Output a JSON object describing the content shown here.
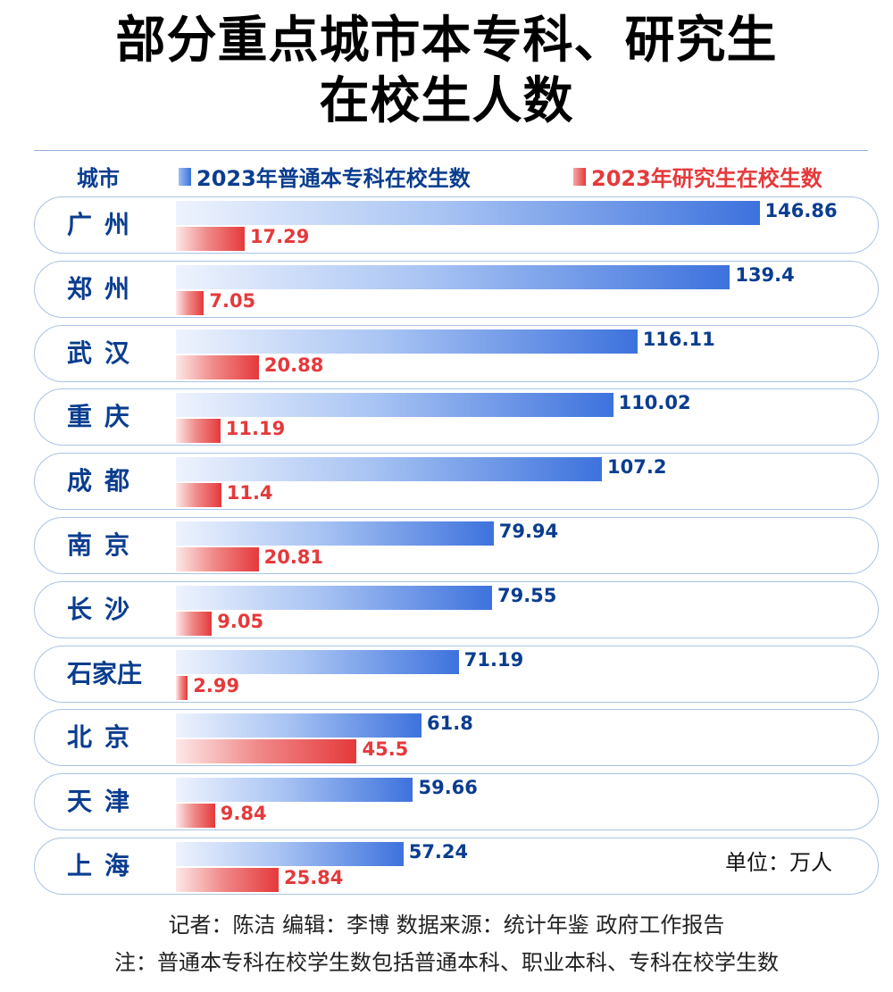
{
  "title_line1": "部分重点城市本专科、研究生",
  "title_line2": "在校生人数",
  "unit": "单位：万人",
  "credits": "记者：陈洁  编辑：李博  数据来源：统计年鉴 政府工作报告",
  "note": "注：普通本专科在校学生数包括普通本科、职业本科、专科在校学生数",
  "colors": {
    "undergrad": "#3d72dd",
    "postgrad": "#e5393b",
    "label": "#0a3d8f",
    "row_border": "#a9c3e6"
  },
  "chart_data": {
    "type": "bar",
    "orientation": "horizontal",
    "category_label": "城市",
    "categories": [
      "广州",
      "郑州",
      "武汉",
      "重庆",
      "成都",
      "南京",
      "长沙",
      "石家庄",
      "北京",
      "天津",
      "上海"
    ],
    "series": [
      {
        "name": "2023年普通本专科在校生数",
        "values": [
          146.86,
          139.4,
          116.11,
          110.02,
          107.2,
          79.94,
          79.55,
          71.19,
          61.8,
          59.66,
          57.24
        ],
        "labels": [
          "146.86",
          "139.4",
          "116.11",
          "110.02",
          "107.2",
          "79.94",
          "79.55",
          "71.19",
          "61.8",
          "59.66",
          "57.24"
        ]
      },
      {
        "name": "2023年研究生在校生数",
        "values": [
          17.29,
          7.05,
          20.88,
          11.19,
          11.4,
          20.81,
          9.05,
          2.99,
          45.5,
          9.84,
          25.84
        ],
        "labels": [
          "17.29",
          "7.05",
          "20.88",
          "11.19",
          "11.4",
          "20.81",
          "9.05",
          "2.99",
          "45.5",
          "9.84",
          "25.84"
        ]
      }
    ],
    "legend": "top",
    "grid": false
  }
}
